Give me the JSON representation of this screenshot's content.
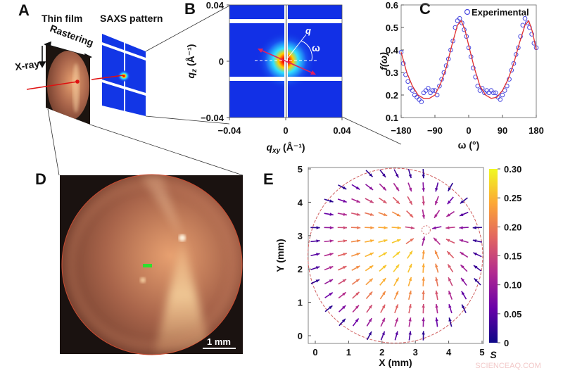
{
  "panels": {
    "a": {
      "label": "A",
      "thin_film": "Thin film",
      "saxs_pattern": "SAXS pattern",
      "rastering": "Rastering",
      "xray": "X-ray"
    },
    "b": {
      "label": "B",
      "q_label": "q",
      "omega_label": "ω"
    },
    "c": {
      "label": "C"
    },
    "d": {
      "label": "D",
      "scale_bar": "1 mm"
    },
    "e": {
      "label": "E"
    }
  },
  "watermark": "SCIENCEAQ.COM",
  "chart_data": [
    {
      "panel": "B",
      "type": "heatmap",
      "xlabel_main": "q",
      "xlabel_sub": "xy",
      "xlabel_unit": " (Å⁻¹)",
      "ylabel_main": "q",
      "ylabel_sub": "z",
      "ylabel_unit": " (Å⁻¹)",
      "xlim": [
        -0.04,
        0.04
      ],
      "ylim": [
        -0.04,
        0.04
      ],
      "xticks": [
        "−0.04",
        "0",
        "0.04"
      ],
      "yticks": [
        "0.04",
        "0",
        "−0.04"
      ],
      "colormap": "jet"
    },
    {
      "panel": "C",
      "type": "scatter",
      "xlabel": "ω (°)",
      "ylabel": "f(ω)",
      "xlim": [
        -180,
        180
      ],
      "ylim": [
        0.1,
        0.6
      ],
      "xticks": [
        "−180",
        "−90",
        "0",
        "90",
        "180"
      ],
      "yticks": [
        "0.1",
        "0.2",
        "0.3",
        "0.4",
        "0.5",
        "0.6"
      ],
      "legend": "top-right",
      "series": [
        {
          "name": "Experimental",
          "marker": "open-circle",
          "color": "#4a4adf",
          "x": [
            -180,
            -174,
            -168,
            -162,
            -156,
            -150,
            -144,
            -138,
            -132,
            -126,
            -120,
            -114,
            -108,
            -102,
            -96,
            -90,
            -84,
            -78,
            -72,
            -66,
            -60,
            -54,
            -48,
            -42,
            -36,
            -30,
            -24,
            -18,
            -12,
            -6,
            0,
            6,
            12,
            18,
            24,
            30,
            36,
            42,
            48,
            54,
            60,
            66,
            72,
            78,
            84,
            90,
            96,
            102,
            108,
            114,
            120,
            126,
            132,
            138,
            144,
            150,
            156,
            162,
            168,
            174,
            180
          ],
          "y": [
            0.39,
            0.34,
            0.29,
            0.26,
            0.23,
            0.22,
            0.2,
            0.19,
            0.18,
            0.17,
            0.21,
            0.22,
            0.23,
            0.21,
            0.22,
            0.22,
            0.2,
            0.24,
            0.27,
            0.3,
            0.33,
            0.36,
            0.4,
            0.44,
            0.5,
            0.53,
            0.54,
            0.52,
            0.49,
            0.46,
            0.41,
            0.37,
            0.32,
            0.28,
            0.24,
            0.22,
            0.23,
            0.21,
            0.22,
            0.21,
            0.22,
            0.21,
            0.21,
            0.19,
            0.18,
            0.2,
            0.22,
            0.24,
            0.27,
            0.31,
            0.34,
            0.38,
            0.41,
            0.46,
            0.51,
            0.54,
            0.52,
            0.5,
            0.47,
            0.43,
            0.41
          ]
        },
        {
          "marker": "line",
          "color": "#e03030",
          "x": [
            -180,
            -165,
            -150,
            -135,
            -120,
            -105,
            -90,
            -75,
            -60,
            -45,
            -30,
            -20,
            -10,
            0,
            15,
            30,
            45,
            60,
            75,
            90,
            105,
            120,
            135,
            150,
            160,
            170,
            180
          ],
          "y": [
            0.39,
            0.3,
            0.24,
            0.2,
            0.185,
            0.185,
            0.2,
            0.25,
            0.32,
            0.42,
            0.51,
            0.53,
            0.49,
            0.42,
            0.32,
            0.24,
            0.2,
            0.185,
            0.19,
            0.22,
            0.27,
            0.34,
            0.43,
            0.51,
            0.53,
            0.48,
            0.4
          ]
        }
      ]
    },
    {
      "panel": "E",
      "type": "quiver",
      "xlabel": "X (mm)",
      "ylabel": "Y (mm)",
      "xlim": [
        -0.2,
        5.05
      ],
      "ylim": [
        -0.25,
        5.05
      ],
      "xticks": [
        "0",
        "1",
        "2",
        "3",
        "4",
        "5"
      ],
      "yticks": [
        "0",
        "1",
        "2",
        "3",
        "4",
        "5"
      ],
      "colorbar": {
        "label": "S",
        "ticks": [
          "0.30",
          "0.25",
          "0.20",
          "0.15",
          "0.10",
          "0.05",
          "0"
        ],
        "range": [
          0,
          0.3
        ],
        "colormap": "plasma"
      },
      "boundary_circle": {
        "cx": 2.4,
        "cy": 2.4,
        "r": 2.62
      },
      "defect": {
        "x": 3.32,
        "y": 3.17
      }
    }
  ]
}
